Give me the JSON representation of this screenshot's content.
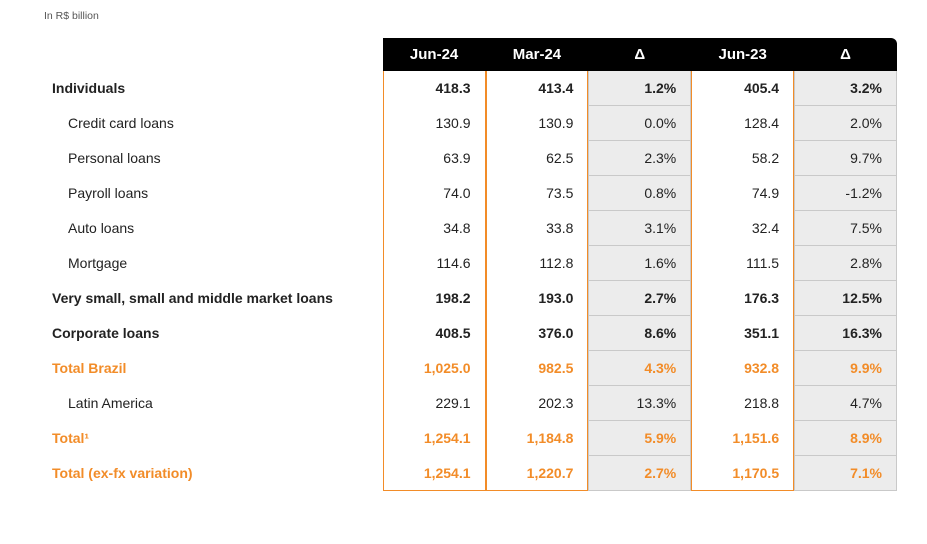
{
  "unitLabel": "In R$ billion",
  "columns": [
    "Jun-24",
    "Mar-24",
    "Δ",
    "Jun-23",
    "Δ"
  ],
  "colTypes": [
    "val",
    "val",
    "delta",
    "val",
    "delta"
  ],
  "rows": [
    {
      "label": "Individuals",
      "labelClass": "bold",
      "styleRow": "bold",
      "cells": [
        "418.3",
        "413.4",
        "1.2%",
        "405.4",
        "3.2%"
      ]
    },
    {
      "label": "Credit card loans",
      "labelClass": "indent1",
      "styleRow": "",
      "cells": [
        "130.9",
        "130.9",
        "0.0%",
        "128.4",
        "2.0%"
      ]
    },
    {
      "label": "Personal loans",
      "labelClass": "indent1",
      "styleRow": "",
      "cells": [
        "63.9",
        "62.5",
        "2.3%",
        "58.2",
        "9.7%"
      ]
    },
    {
      "label": "Payroll loans",
      "labelClass": "indent1",
      "styleRow": "",
      "cells": [
        "74.0",
        "73.5",
        "0.8%",
        "74.9",
        "-1.2%"
      ]
    },
    {
      "label": "Auto loans",
      "labelClass": "indent1",
      "styleRow": "",
      "cells": [
        "34.8",
        "33.8",
        "3.1%",
        "32.4",
        "7.5%"
      ]
    },
    {
      "label": "Mortgage",
      "labelClass": "indent1",
      "styleRow": "",
      "cells": [
        "114.6",
        "112.8",
        "1.6%",
        "111.5",
        "2.8%"
      ]
    },
    {
      "label": "Very small, small and middle market loans",
      "labelClass": "bold",
      "styleRow": "bold",
      "cells": [
        "198.2",
        "193.0",
        "2.7%",
        "176.3",
        "12.5%"
      ]
    },
    {
      "label": "Corporate loans",
      "labelClass": "bold",
      "styleRow": "bold",
      "cells": [
        "408.5",
        "376.0",
        "8.6%",
        "351.1",
        "16.3%"
      ]
    },
    {
      "label": "Total Brazil",
      "labelClass": "orange",
      "styleRow": "orange",
      "cells": [
        "1,025.0",
        "982.5",
        "4.3%",
        "932.8",
        "9.9%"
      ]
    },
    {
      "label": "Latin America",
      "labelClass": "indent1",
      "styleRow": "",
      "cells": [
        "229.1",
        "202.3",
        "13.3%",
        "218.8",
        "4.7%"
      ]
    },
    {
      "label": "Total¹",
      "labelClass": "orange",
      "styleRow": "orange",
      "cells": [
        "1,254.1",
        "1,184.8",
        "5.9%",
        "1,151.6",
        "8.9%"
      ]
    },
    {
      "label": "Total (ex-fx variation)",
      "labelClass": "orange",
      "styleRow": "orange",
      "cells": [
        "1,254.1",
        "1,220.7",
        "2.7%",
        "1,170.5",
        "7.1%"
      ]
    }
  ],
  "colors": {
    "accent": "#f28c28",
    "headerBg": "#000000",
    "headerText": "#ffffff",
    "deltaBg": "#ececec",
    "deltaBorder": "#c9c9c9",
    "text": "#222222"
  }
}
